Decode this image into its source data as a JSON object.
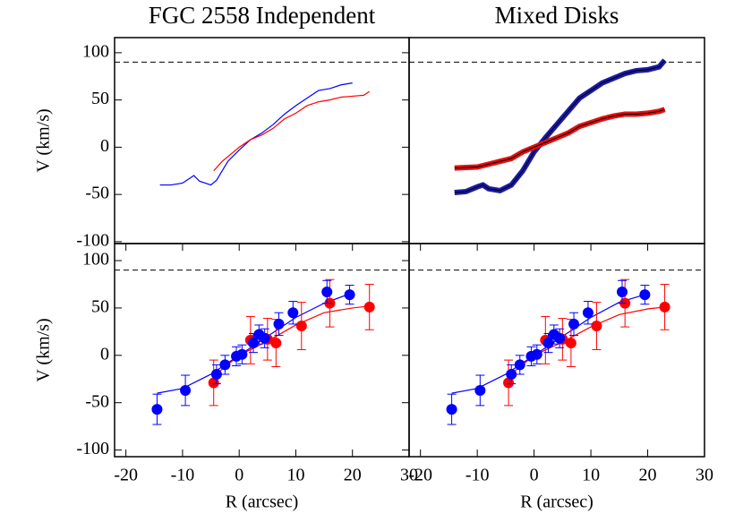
{
  "chart_data": [
    {
      "type": "line",
      "title": "FGC 2558 Independent",
      "ylabel": "V (km/s)",
      "xlim": [
        -22,
        30
      ],
      "ylim": [
        -102,
        116
      ],
      "yticks": [
        -100,
        -50,
        0,
        50,
        100
      ],
      "reference_line": 90,
      "series": [
        {
          "color": "#0000ff",
          "line_width": 1.2,
          "style": "line",
          "x": [
            -14,
            -12,
            -10,
            -8,
            -7,
            -5,
            -4,
            -2,
            0,
            2,
            4,
            6,
            8,
            10,
            12,
            14,
            16,
            18,
            20
          ],
          "values": [
            -40,
            -40,
            -38,
            -30,
            -36,
            -40,
            -35,
            -15,
            -3,
            8,
            15,
            24,
            35,
            44,
            52,
            60,
            62,
            66,
            68
          ]
        },
        {
          "color": "#ff0000",
          "line_width": 1.2,
          "style": "line",
          "x": [
            -4.5,
            -3,
            -1,
            0,
            2,
            4,
            6,
            8,
            10,
            12,
            14,
            16,
            18,
            20,
            22,
            23
          ],
          "values": [
            -25,
            -15,
            -5,
            0,
            8,
            13,
            20,
            30,
            36,
            44,
            48,
            50,
            53,
            54,
            55,
            59
          ]
        }
      ]
    },
    {
      "type": "line",
      "title": "Mixed Disks",
      "xlim": [
        -22,
        30
      ],
      "ylim": [
        -102,
        116
      ],
      "reference_line": 90,
      "series": [
        {
          "color": "#1a1aa8",
          "line_width": 6,
          "style": "line",
          "x": [
            -14,
            -12,
            -10,
            -9,
            -8,
            -6,
            -4,
            -2,
            0,
            2,
            4,
            6,
            8,
            10,
            12,
            14,
            16,
            18,
            20,
            22,
            23
          ],
          "values": [
            -48,
            -47,
            -42,
            -40,
            -44,
            -46,
            -40,
            -25,
            -5,
            10,
            24,
            38,
            52,
            60,
            68,
            73,
            78,
            81,
            82,
            85,
            92
          ]
        },
        {
          "color": "#e01010",
          "line_width": 6,
          "style": "line",
          "x": [
            -14,
            -10,
            -8,
            -6,
            -4,
            -2,
            0,
            2,
            4,
            6,
            8,
            10,
            12,
            14,
            16,
            18,
            20,
            22,
            23
          ],
          "values": [
            -22,
            -21,
            -18,
            -15,
            -12,
            -5,
            0,
            5,
            10,
            15,
            22,
            26,
            30,
            33,
            35,
            35,
            36,
            38,
            40
          ]
        }
      ]
    },
    {
      "type": "errorbar",
      "xlabel": "R (arcsec)",
      "ylabel": "V (km/s)",
      "xlim": [
        -22,
        30
      ],
      "ylim": [
        -107,
        118
      ],
      "xticks": [
        -20,
        -10,
        0,
        10,
        20,
        30
      ],
      "yticks": [
        -100,
        -50,
        0,
        50,
        100
      ],
      "reference_line": 90,
      "series": [
        {
          "color": "#0000ff",
          "style": "line",
          "line_width": 1.2,
          "x": [
            -14.5,
            -10,
            -5,
            0,
            5,
            10,
            15,
            20
          ],
          "values": [
            -40,
            -35,
            -20,
            0,
            20,
            40,
            55,
            66
          ]
        },
        {
          "color": "#ff0000",
          "style": "line",
          "line_width": 1.2,
          "x": [
            -4.5,
            0,
            5,
            10,
            15,
            20,
            23
          ],
          "values": [
            -22,
            0,
            15,
            32,
            45,
            50,
            52
          ]
        },
        {
          "color": "#ff0000",
          "style": "points",
          "x": [
            -4.5,
            2,
            5,
            6.5,
            11,
            16,
            23
          ],
          "values": [
            -29,
            16,
            17,
            13,
            31,
            55,
            51
          ],
          "errors": [
            24,
            25,
            22,
            25,
            25,
            25,
            24
          ]
        },
        {
          "color": "#0000ff",
          "style": "points",
          "x": [
            -14.5,
            -9.5,
            -4,
            -2.5,
            -0.5,
            0.5,
            2.5,
            3.5,
            4.5,
            7,
            9.5,
            15.5,
            19.5
          ],
          "values": [
            -57,
            -37,
            -20,
            -10,
            -1,
            1,
            13,
            22,
            18,
            33,
            45,
            67,
            64
          ],
          "errors": [
            16,
            16,
            10,
            10,
            10,
            10,
            10,
            10,
            10,
            12,
            12,
            12,
            10
          ]
        }
      ]
    },
    {
      "type": "errorbar",
      "xlabel": "R (arcsec)",
      "xlim": [
        -22,
        30
      ],
      "ylim": [
        -107,
        118
      ],
      "xticks": [
        -20,
        -10,
        0,
        10,
        20,
        30
      ],
      "reference_line": 90,
      "series": [
        {
          "color": "#0000ff",
          "style": "line",
          "line_width": 1.2,
          "x": [
            -14.5,
            -10,
            -5,
            0,
            5,
            10,
            15,
            20
          ],
          "values": [
            -40,
            -35,
            -20,
            0,
            20,
            40,
            56,
            65
          ]
        },
        {
          "color": "#ff0000",
          "style": "line",
          "line_width": 1.2,
          "x": [
            -4.5,
            0,
            5,
            10,
            15,
            20,
            23
          ],
          "values": [
            -22,
            0,
            14,
            30,
            43,
            49,
            51
          ]
        },
        {
          "color": "#ff0000",
          "style": "points",
          "x": [
            -4.5,
            2,
            5,
            6.5,
            11,
            16,
            23
          ],
          "values": [
            -29,
            16,
            17,
            13,
            31,
            55,
            51
          ],
          "errors": [
            24,
            25,
            22,
            25,
            25,
            25,
            24
          ]
        },
        {
          "color": "#0000ff",
          "style": "points",
          "x": [
            -14.5,
            -9.5,
            -4,
            -2.5,
            -0.5,
            0.5,
            2.5,
            3.5,
            4.5,
            7,
            9.5,
            15.5,
            19.5
          ],
          "values": [
            -57,
            -37,
            -20,
            -10,
            -1,
            1,
            13,
            22,
            18,
            33,
            45,
            67,
            64
          ],
          "errors": [
            16,
            16,
            10,
            10,
            10,
            10,
            10,
            10,
            10,
            12,
            12,
            12,
            10
          ]
        }
      ]
    }
  ]
}
